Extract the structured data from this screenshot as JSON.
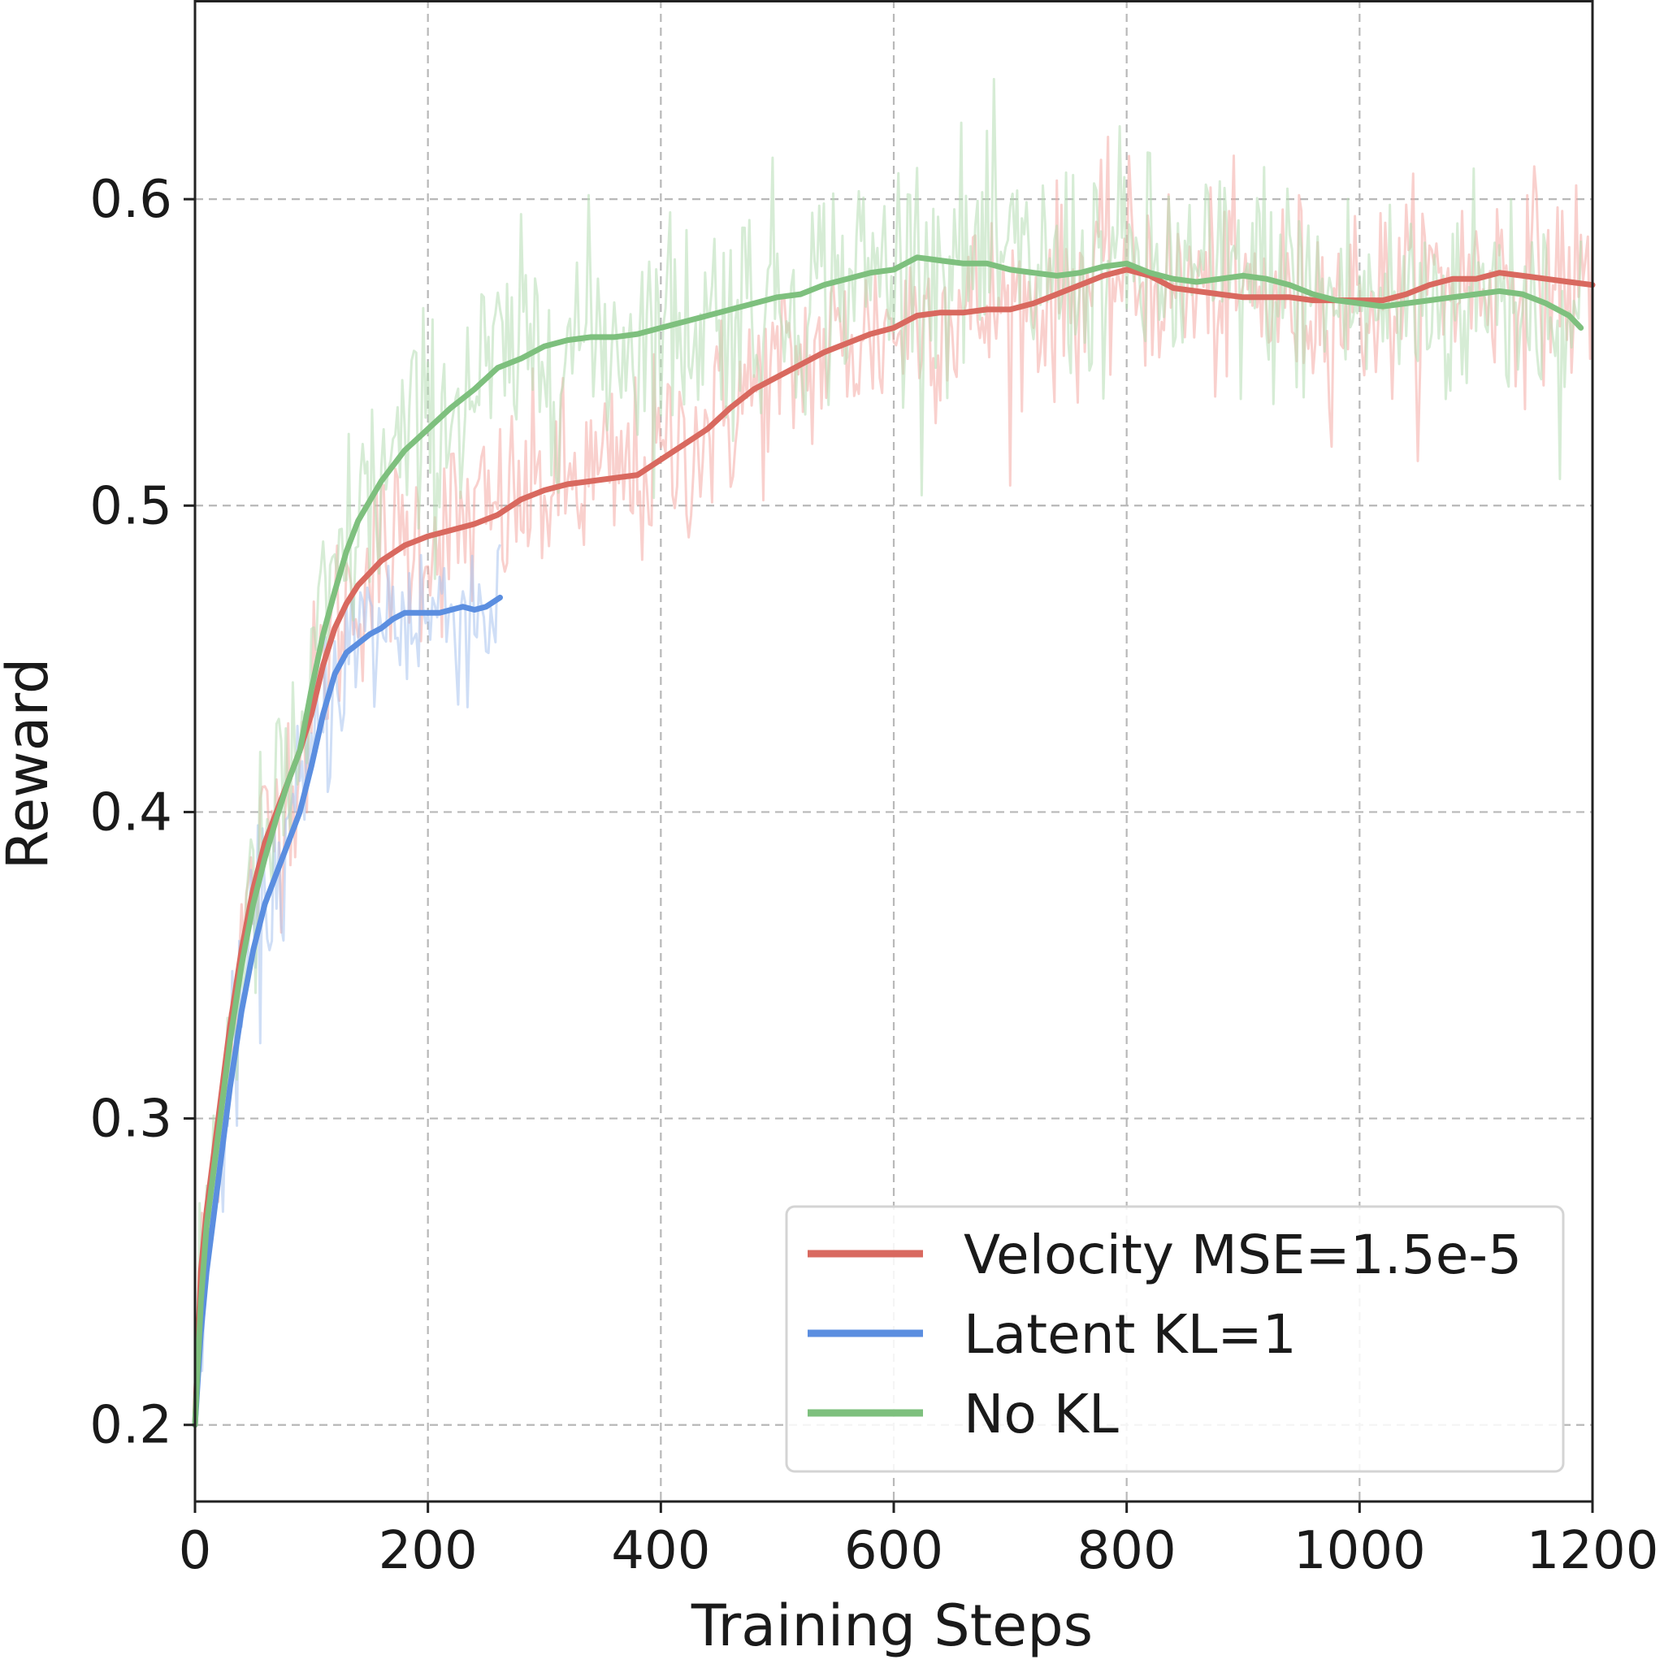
{
  "chart_data": {
    "type": "line",
    "title": "",
    "xlabel": "Training Steps",
    "ylabel": "Reward",
    "xlim": [
      0,
      1200
    ],
    "ylim": [
      0.175,
      0.665
    ],
    "xticks": [
      0,
      200,
      400,
      600,
      800,
      1000,
      1200
    ],
    "xtick_labels": [
      "0",
      "200",
      "400",
      "600",
      "800",
      "1000",
      "1200"
    ],
    "yticks": [
      0.2,
      0.3,
      0.4,
      0.5,
      0.6
    ],
    "ytick_labels": [
      "0.2",
      "0.3",
      "0.4",
      "0.5",
      "0.6"
    ],
    "grid": true,
    "legend_position": "bottom-right",
    "series": [
      {
        "name": "Velocity MSE=1.5e-5",
        "color": "#d9695f",
        "raw_color": "#f4aaa4",
        "noise": 0.03,
        "x": [
          0,
          5,
          10,
          20,
          30,
          40,
          50,
          60,
          70,
          80,
          90,
          100,
          110,
          120,
          130,
          140,
          160,
          180,
          200,
          220,
          240,
          260,
          280,
          300,
          320,
          340,
          360,
          380,
          400,
          420,
          440,
          460,
          480,
          500,
          520,
          540,
          560,
          580,
          600,
          620,
          640,
          660,
          680,
          700,
          720,
          740,
          760,
          780,
          800,
          820,
          840,
          860,
          880,
          900,
          920,
          940,
          960,
          980,
          1000,
          1020,
          1040,
          1060,
          1080,
          1100,
          1120,
          1140,
          1160,
          1180,
          1200
        ],
        "y": [
          0.2,
          0.25,
          0.27,
          0.3,
          0.33,
          0.355,
          0.375,
          0.39,
          0.4,
          0.41,
          0.42,
          0.432,
          0.448,
          0.46,
          0.468,
          0.474,
          0.482,
          0.487,
          0.49,
          0.492,
          0.494,
          0.497,
          0.502,
          0.505,
          0.507,
          0.508,
          0.509,
          0.51,
          0.515,
          0.52,
          0.525,
          0.532,
          0.538,
          0.542,
          0.546,
          0.55,
          0.553,
          0.556,
          0.558,
          0.562,
          0.563,
          0.563,
          0.564,
          0.564,
          0.566,
          0.569,
          0.572,
          0.575,
          0.577,
          0.575,
          0.571,
          0.57,
          0.569,
          0.568,
          0.568,
          0.568,
          0.567,
          0.567,
          0.567,
          0.567,
          0.569,
          0.572,
          0.574,
          0.574,
          0.576,
          0.575,
          0.574,
          0.573,
          0.572
        ]
      },
      {
        "name": "Latent KL=1",
        "color": "#5b8ee0",
        "raw_color": "#a7c3ef",
        "noise": 0.028,
        "x": [
          0,
          5,
          10,
          20,
          30,
          40,
          50,
          60,
          70,
          80,
          90,
          100,
          110,
          120,
          130,
          140,
          150,
          160,
          170,
          180,
          190,
          200,
          210,
          220,
          230,
          240,
          250,
          262
        ],
        "y": [
          0.2,
          0.23,
          0.25,
          0.28,
          0.31,
          0.335,
          0.355,
          0.37,
          0.38,
          0.39,
          0.4,
          0.415,
          0.432,
          0.445,
          0.452,
          0.455,
          0.458,
          0.46,
          0.463,
          0.465,
          0.465,
          0.465,
          0.465,
          0.466,
          0.467,
          0.466,
          0.467,
          0.47
        ]
      },
      {
        "name": "No KL",
        "color": "#7ec07e",
        "raw_color": "#b5dcb3",
        "noise": 0.035,
        "x": [
          0,
          5,
          10,
          20,
          30,
          40,
          50,
          60,
          70,
          80,
          90,
          100,
          110,
          120,
          130,
          140,
          160,
          180,
          200,
          220,
          240,
          260,
          280,
          300,
          320,
          340,
          360,
          380,
          400,
          420,
          440,
          460,
          480,
          500,
          520,
          540,
          560,
          580,
          600,
          620,
          640,
          660,
          680,
          700,
          720,
          740,
          760,
          780,
          800,
          820,
          840,
          860,
          880,
          900,
          920,
          940,
          960,
          980,
          1000,
          1020,
          1040,
          1060,
          1080,
          1100,
          1120,
          1140,
          1160,
          1180,
          1190
        ],
        "y": [
          0.2,
          0.24,
          0.265,
          0.295,
          0.325,
          0.35,
          0.37,
          0.385,
          0.398,
          0.41,
          0.42,
          0.44,
          0.458,
          0.472,
          0.485,
          0.495,
          0.508,
          0.518,
          0.525,
          0.532,
          0.538,
          0.545,
          0.548,
          0.552,
          0.554,
          0.555,
          0.555,
          0.556,
          0.558,
          0.56,
          0.562,
          0.564,
          0.566,
          0.568,
          0.569,
          0.572,
          0.574,
          0.576,
          0.577,
          0.581,
          0.58,
          0.579,
          0.579,
          0.577,
          0.576,
          0.575,
          0.576,
          0.578,
          0.579,
          0.576,
          0.574,
          0.573,
          0.574,
          0.575,
          0.574,
          0.572,
          0.569,
          0.567,
          0.566,
          0.565,
          0.566,
          0.567,
          0.568,
          0.569,
          0.57,
          0.569,
          0.566,
          0.562,
          0.558
        ]
      }
    ]
  }
}
